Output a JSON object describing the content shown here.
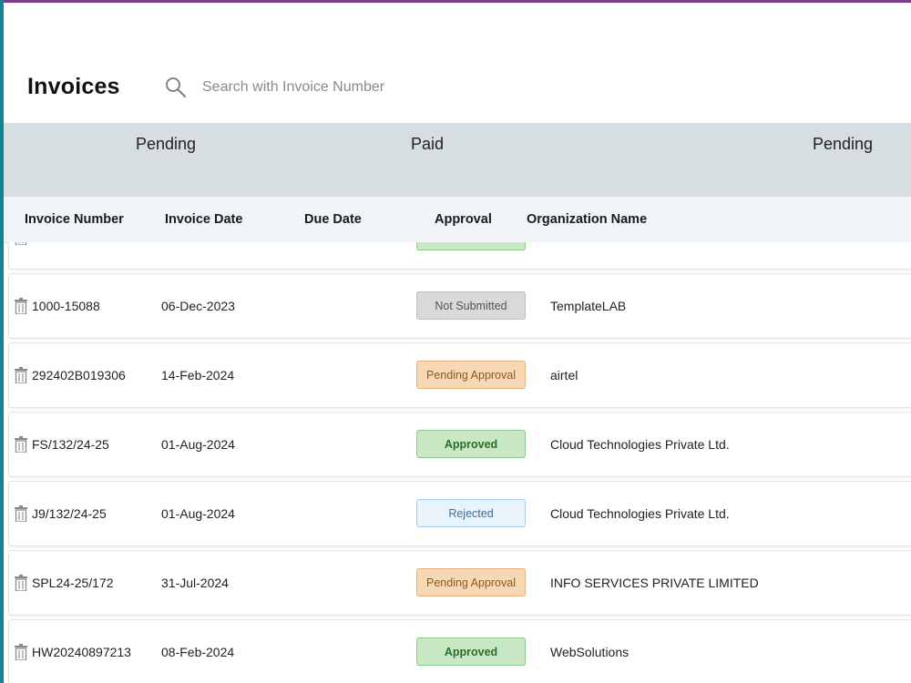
{
  "header": {
    "title": "Invoices",
    "search_placeholder": "Search with Invoice Number"
  },
  "summary": [
    {
      "label": "Pending"
    },
    {
      "label": "Paid"
    },
    {
      "label": "Pending"
    }
  ],
  "columns": [
    "Invoice Number",
    "Invoice Date",
    "Due Date",
    "Approval",
    "Organization Name"
  ],
  "rows": [
    {
      "invoice_number": "",
      "invoice_date": "",
      "due_date": "",
      "approval": "",
      "status": "approved",
      "organization": ""
    },
    {
      "invoice_number": "1000-15088",
      "invoice_date": "06-Dec-2023",
      "due_date": "",
      "approval": "Not Submitted",
      "status": "not-submitted",
      "organization": "TemplateLAB"
    },
    {
      "invoice_number": "292402B019306",
      "invoice_date": "14-Feb-2024",
      "due_date": "",
      "approval": "Pending Approval",
      "status": "pending",
      "organization": "airtel"
    },
    {
      "invoice_number": "FS/132/24-25",
      "invoice_date": "01-Aug-2024",
      "due_date": "",
      "approval": "Approved",
      "status": "approved",
      "organization": "Cloud Technologies Private Ltd."
    },
    {
      "invoice_number": "J9/132/24-25",
      "invoice_date": "01-Aug-2024",
      "due_date": "",
      "approval": "Rejected",
      "status": "rejected",
      "organization": "Cloud Technologies Private Ltd."
    },
    {
      "invoice_number": "SPL24-25/172",
      "invoice_date": "31-Jul-2024",
      "due_date": "",
      "approval": "Pending Approval",
      "status": "pending",
      "organization": "INFO SERVICES PRIVATE LIMITED"
    },
    {
      "invoice_number": "HW20240897213",
      "invoice_date": "08-Feb-2024",
      "due_date": "",
      "approval": "Approved",
      "status": "approved",
      "organization": "WebSolutions"
    }
  ],
  "icons": {
    "search": "search-icon",
    "delete": "trash-icon"
  },
  "colors": {
    "top_accent": "#7b3f8c",
    "left_accent": "#0e8596",
    "summary_band": "#d7dee2",
    "header_bg": "#f1f5f7"
  }
}
